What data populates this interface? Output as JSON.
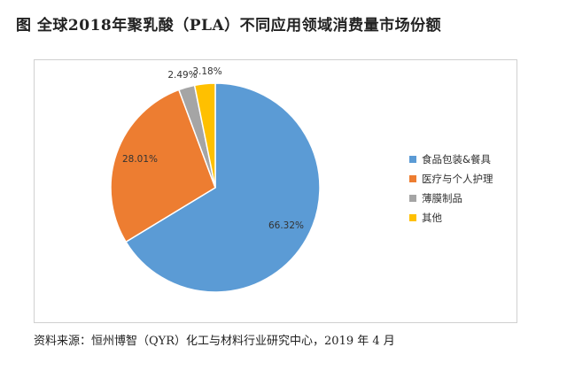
{
  "title": "图 全球2018年聚乳酸（PLA）不同应用领域消费量市场份额",
  "source": "资料来源：恒州博智（QYR）化工与材料行业研究中心，2019 年 4 月",
  "chart_data": {
    "type": "pie",
    "categories": [
      "食品包装&餐具",
      "医疗与个人护理",
      "薄膜制品",
      "其他"
    ],
    "values": [
      66.32,
      28.01,
      2.49,
      3.18
    ],
    "labels": [
      "66.32%",
      "28.01%",
      "2.49%",
      "3.18%"
    ],
    "colors": [
      "#5b9bd5",
      "#ed7d31",
      "#a5a5a5",
      "#ffc000"
    ],
    "legend": "right"
  }
}
